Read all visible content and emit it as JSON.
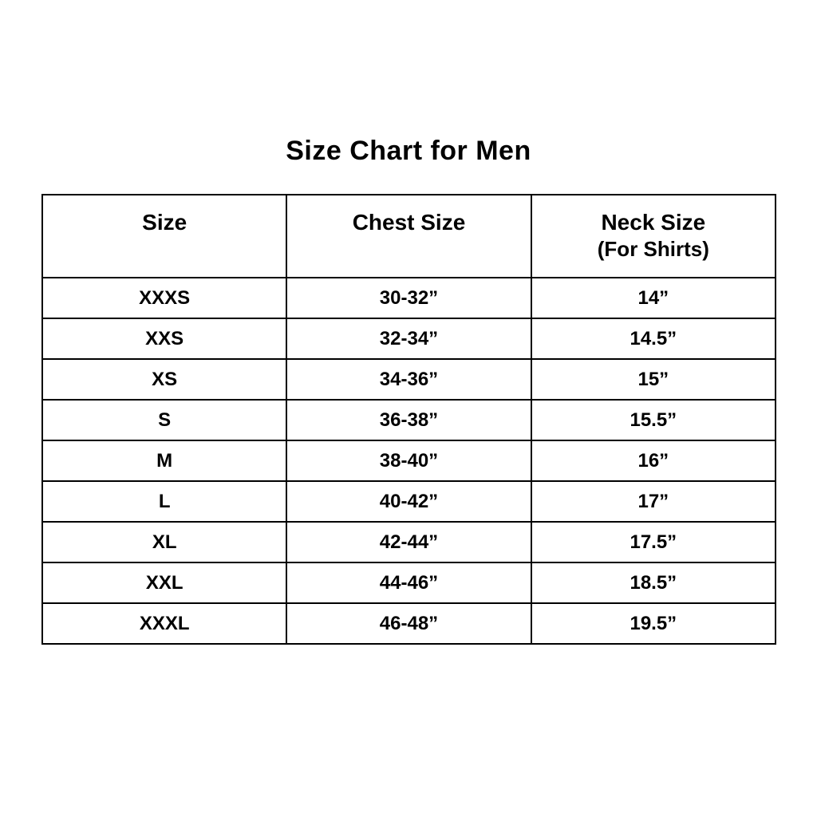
{
  "title": "Size Chart for Men",
  "colors": {
    "background": "#ffffff",
    "text": "#000000",
    "border": "#000000"
  },
  "table": {
    "columns": [
      {
        "label": "Size",
        "sublabel": ""
      },
      {
        "label": "Chest Size",
        "sublabel": ""
      },
      {
        "label": "Neck Size",
        "sublabel": "(For Shirts)"
      }
    ],
    "rows": [
      {
        "size": "XXXS",
        "chest": "30-32”",
        "neck": "14”"
      },
      {
        "size": "XXS",
        "chest": "32-34”",
        "neck": "14.5”"
      },
      {
        "size": "XS",
        "chest": "34-36”",
        "neck": "15”"
      },
      {
        "size": "S",
        "chest": "36-38”",
        "neck": "15.5”"
      },
      {
        "size": "M",
        "chest": "38-40”",
        "neck": "16”"
      },
      {
        "size": "L",
        "chest": "40-42”",
        "neck": "17”"
      },
      {
        "size": "XL",
        "chest": "42-44”",
        "neck": "17.5”"
      },
      {
        "size": "XXL",
        "chest": "44-46”",
        "neck": "18.5”"
      },
      {
        "size": "XXXL",
        "chest": "46-48”",
        "neck": "19.5”"
      }
    ]
  },
  "chart_data": {
    "type": "table",
    "title": "Size Chart for Men",
    "columns": [
      "Size",
      "Chest Size",
      "Neck Size (For Shirts)"
    ],
    "rows": [
      [
        "XXXS",
        "30-32”",
        "14”"
      ],
      [
        "XXS",
        "32-34”",
        "14.5”"
      ],
      [
        "XS",
        "34-36”",
        "15”"
      ],
      [
        "S",
        "36-38”",
        "15.5”"
      ],
      [
        "M",
        "38-40”",
        "16”"
      ],
      [
        "L",
        "40-42”",
        "17”"
      ],
      [
        "XL",
        "42-44”",
        "17.5”"
      ],
      [
        "XXL",
        "44-46”",
        "18.5”"
      ],
      [
        "XXXL",
        "46-48”",
        "19.5”"
      ]
    ]
  }
}
